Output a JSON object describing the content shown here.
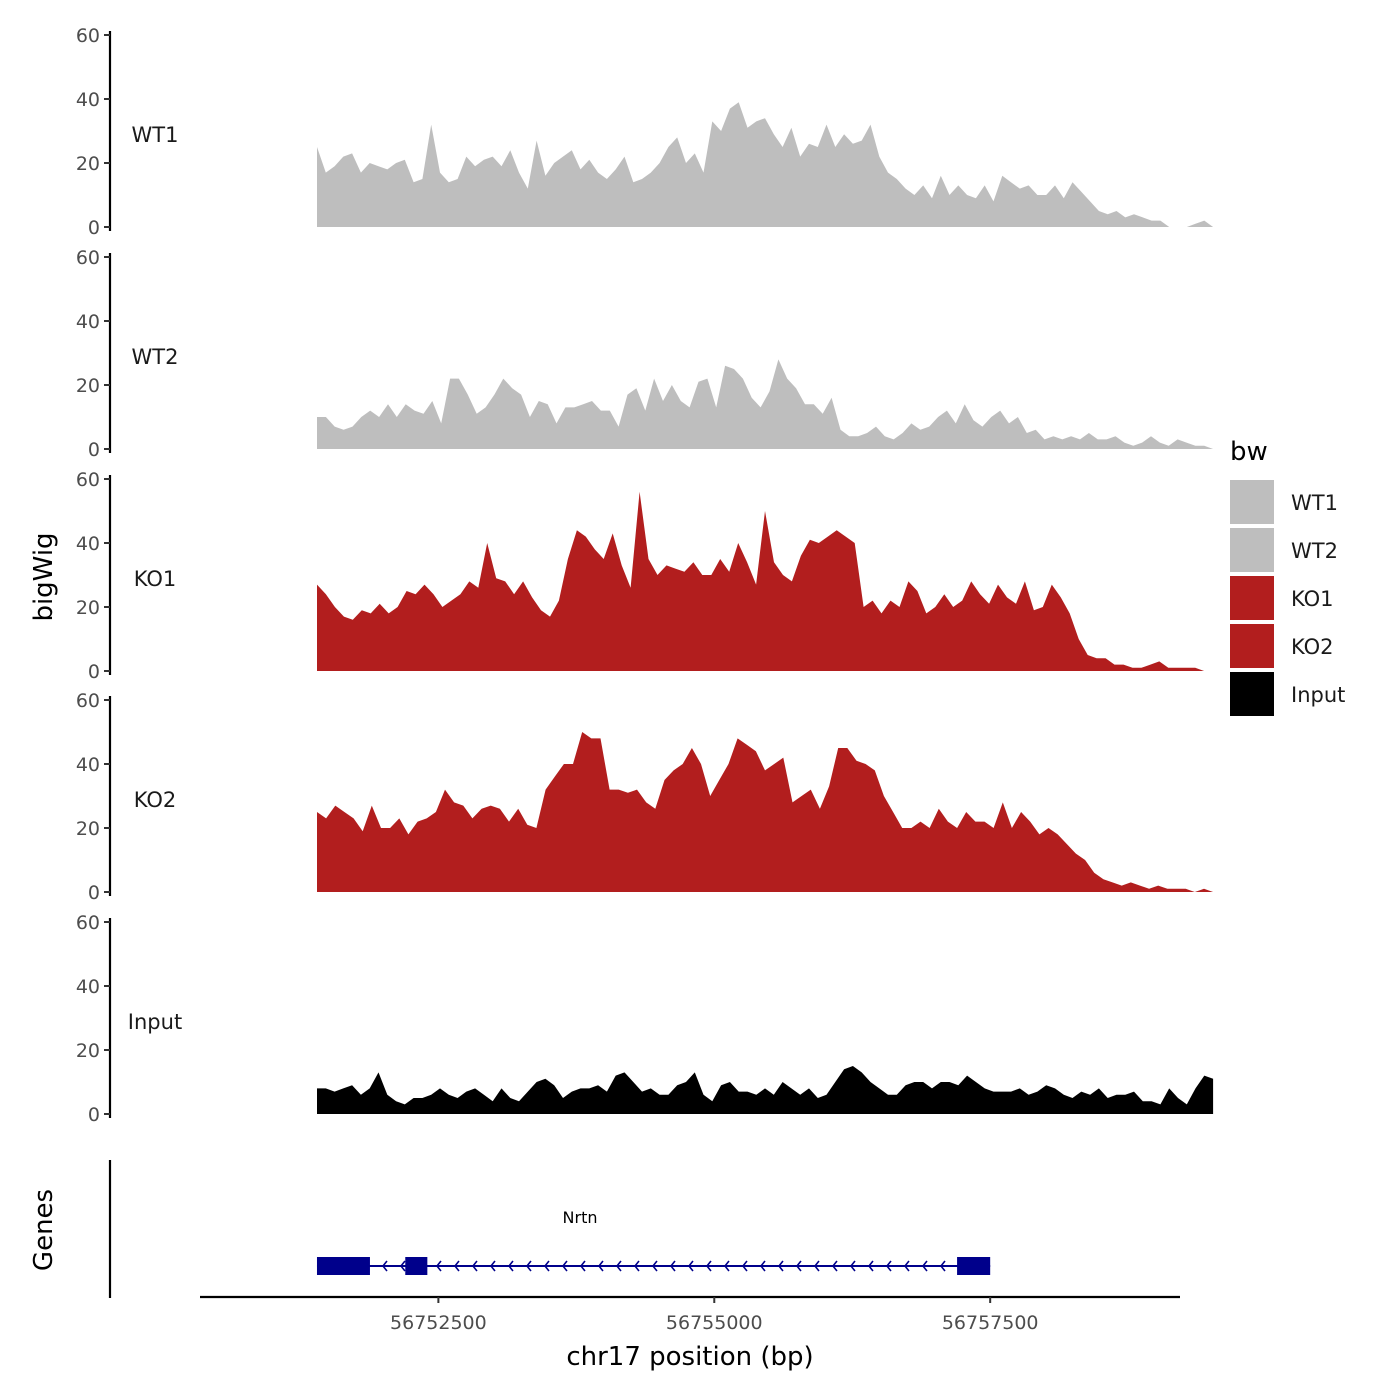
{
  "colors": {
    "WT1": "#BEBEBE",
    "WT2": "#BEBEBE",
    "KO1": "#B21E1E",
    "KO2": "#B21E1E",
    "Input": "#000000",
    "gene": "#00008B"
  },
  "chart_data": {
    "type": "area",
    "title": "",
    "xlabel": "chr17 position (bp)",
    "ylabel": "bigWig",
    "genes_label": "Genes",
    "ylim": [
      0,
      60
    ],
    "yticks": [
      0,
      20,
      40,
      60
    ],
    "xticks": [
      56752500,
      56755000,
      56757500
    ],
    "xtick_labels": [
      "56752500",
      "56755000",
      "56757500"
    ],
    "xlim": [
      56750340,
      56759220
    ],
    "x_start": 56751400,
    "x_end": 56759520,
    "legend": {
      "title": "bw",
      "position": "right",
      "entries": [
        "WT1",
        "WT2",
        "KO1",
        "KO2",
        "Input"
      ]
    },
    "tracks": [
      {
        "name": "WT1",
        "values": [
          25,
          17,
          19,
          22,
          23,
          17,
          20,
          19,
          18,
          20,
          21,
          14,
          15,
          32,
          17,
          14,
          15,
          22,
          19,
          21,
          22,
          19,
          24,
          17,
          12,
          27,
          16,
          20,
          22,
          24,
          18,
          21,
          17,
          15,
          18,
          22,
          14,
          15,
          17,
          20,
          25,
          28,
          20,
          23,
          17,
          33,
          30,
          37,
          39,
          31,
          33,
          34,
          29,
          25,
          31,
          22,
          26,
          25,
          32,
          25,
          29,
          26,
          27,
          32,
          22,
          17,
          15,
          12,
          10,
          13,
          9,
          16,
          10,
          13,
          10,
          9,
          13,
          8,
          16,
          14,
          12,
          13,
          10,
          10,
          13,
          9,
          14,
          11,
          8,
          5,
          4,
          5,
          3,
          4,
          3,
          2,
          2,
          0,
          0,
          0,
          1,
          2,
          0
        ]
      },
      {
        "name": "WT2",
        "values": [
          10,
          10,
          7,
          6,
          7,
          10,
          12,
          10,
          14,
          10,
          14,
          12,
          11,
          15,
          8,
          22,
          22,
          17,
          11,
          13,
          17,
          22,
          19,
          17,
          10,
          15,
          14,
          8,
          13,
          13,
          14,
          15,
          12,
          12,
          7,
          17,
          19,
          12,
          22,
          15,
          20,
          15,
          13,
          21,
          22,
          13,
          26,
          25,
          22,
          16,
          13,
          18,
          28,
          22,
          19,
          14,
          14,
          11,
          16,
          6,
          4,
          4,
          5,
          7,
          4,
          3,
          5,
          8,
          6,
          7,
          10,
          12,
          8,
          14,
          9,
          7,
          10,
          12,
          8,
          10,
          5,
          6,
          3,
          4,
          3,
          4,
          3,
          5,
          3,
          3,
          4,
          2,
          1,
          2,
          4,
          2,
          1,
          3,
          2,
          1,
          1,
          0
        ]
      },
      {
        "name": "KO1",
        "values": [
          27,
          24,
          20,
          17,
          16,
          19,
          18,
          21,
          18,
          20,
          25,
          24,
          27,
          24,
          20,
          22,
          24,
          28,
          26,
          40,
          29,
          28,
          24,
          28,
          23,
          19,
          17,
          22,
          35,
          44,
          42,
          38,
          35,
          43,
          33,
          26,
          56,
          35,
          30,
          33,
          32,
          31,
          34,
          30,
          30,
          35,
          31,
          40,
          34,
          27,
          50,
          34,
          30,
          28,
          36,
          41,
          40,
          42,
          44,
          42,
          40,
          20,
          22,
          18,
          22,
          20,
          28,
          25,
          18,
          20,
          24,
          20,
          22,
          28,
          24,
          21,
          27,
          23,
          21,
          28,
          19,
          20,
          27,
          23,
          18,
          10,
          5,
          4,
          4,
          2,
          2,
          1,
          1,
          2,
          3,
          1,
          1,
          1,
          1,
          0,
          0
        ]
      },
      {
        "name": "KO2",
        "values": [
          25,
          23,
          27,
          25,
          23,
          19,
          27,
          20,
          20,
          23,
          18,
          22,
          23,
          25,
          32,
          28,
          27,
          23,
          26,
          27,
          26,
          22,
          26,
          21,
          20,
          32,
          36,
          40,
          40,
          50,
          48,
          48,
          32,
          32,
          31,
          32,
          28,
          26,
          35,
          38,
          40,
          45,
          40,
          30,
          35,
          40,
          48,
          46,
          44,
          38,
          40,
          42,
          28,
          30,
          32,
          26,
          33,
          45,
          45,
          41,
          40,
          38,
          30,
          25,
          20,
          20,
          22,
          20,
          26,
          22,
          20,
          25,
          22,
          22,
          20,
          28,
          20,
          25,
          22,
          18,
          20,
          18,
          15,
          12,
          10,
          6,
          4,
          3,
          2,
          3,
          2,
          1,
          2,
          1,
          1,
          1,
          0,
          1,
          0
        ]
      },
      {
        "name": "Input",
        "values": [
          8,
          8,
          7,
          8,
          9,
          6,
          8,
          13,
          6,
          4,
          3,
          5,
          5,
          6,
          8,
          6,
          5,
          7,
          8,
          6,
          4,
          8,
          5,
          4,
          7,
          10,
          11,
          9,
          5,
          7,
          8,
          8,
          9,
          7,
          12,
          13,
          10,
          7,
          8,
          6,
          6,
          9,
          10,
          13,
          6,
          4,
          9,
          10,
          7,
          7,
          6,
          8,
          6,
          10,
          8,
          6,
          8,
          5,
          6,
          10,
          14,
          15,
          13,
          10,
          8,
          6,
          6,
          9,
          10,
          10,
          8,
          10,
          10,
          9,
          12,
          10,
          8,
          7,
          7,
          7,
          8,
          6,
          7,
          9,
          8,
          6,
          5,
          7,
          6,
          8,
          5,
          6,
          6,
          7,
          4,
          4,
          3,
          8,
          5,
          3,
          8,
          12,
          11
        ]
      }
    ],
    "gene_track": {
      "name": "Nrtn",
      "strand": "-",
      "start": 56751400,
      "end": 56757500,
      "exons": [
        [
          56751400,
          56751880
        ],
        [
          56752200,
          56752400
        ],
        [
          56757200,
          56757500
        ]
      ]
    }
  }
}
